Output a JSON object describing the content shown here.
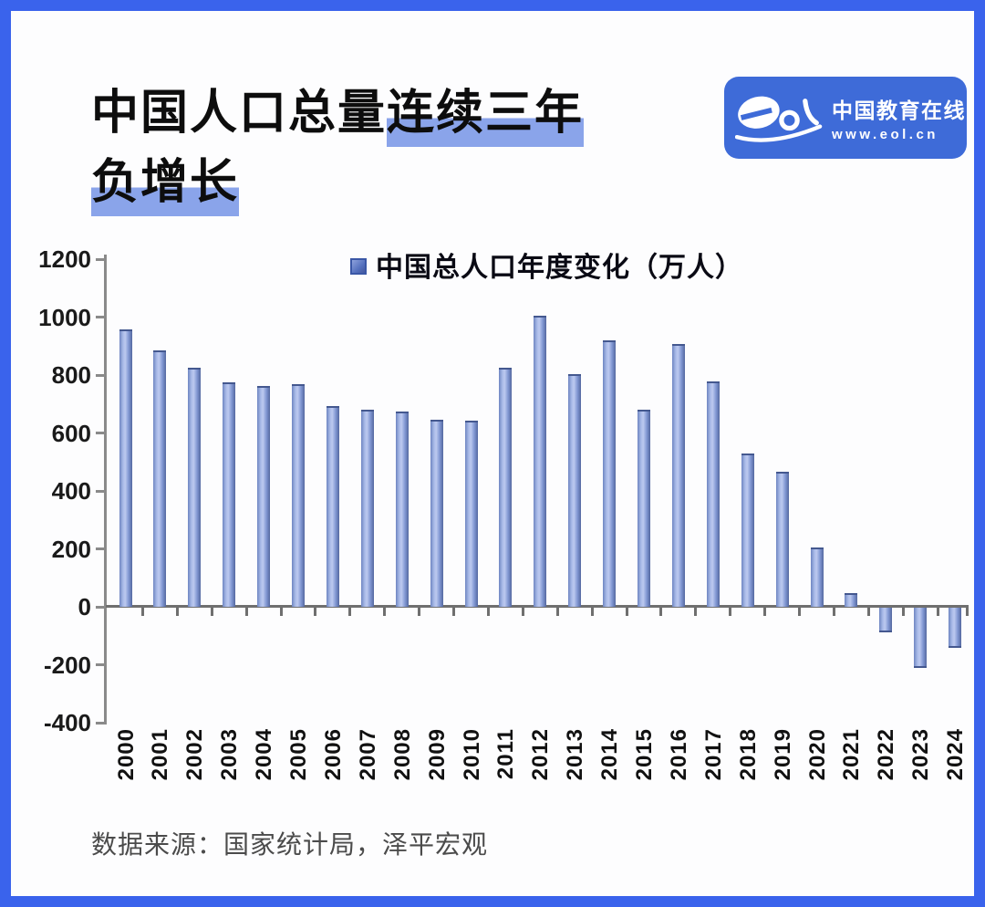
{
  "frame": {
    "border_color": "#3A63EC"
  },
  "header": {
    "title_line1_plain": "中国人口总量",
    "title_line1_highlight": "连续三年",
    "title_line2_highlight": "负增长",
    "highlight_color": "#8AA4EA"
  },
  "logo": {
    "background": "#3E6BD8",
    "wordmark": "eol",
    "name": "中国教育在线",
    "url": "www.eol.cn"
  },
  "chart_data": {
    "type": "bar",
    "title": "",
    "legend": "中国总人口年度变化（万人）",
    "legend_position": "top-center",
    "grid": false,
    "categories": [
      "2000",
      "2001",
      "2002",
      "2003",
      "2004",
      "2005",
      "2006",
      "2007",
      "2008",
      "2009",
      "2010",
      "2011",
      "2012",
      "2013",
      "2014",
      "2015",
      "2016",
      "2017",
      "2018",
      "2019",
      "2020",
      "2021",
      "2022",
      "2023",
      "2024"
    ],
    "values": [
      957,
      884,
      826,
      774,
      761,
      768,
      692,
      681,
      673,
      646,
      641,
      825,
      1006,
      804,
      920,
      680,
      906,
      779,
      530,
      467,
      204,
      48,
      -85,
      -208,
      -139
    ],
    "xlabel": "",
    "ylabel": "",
    "ylim": [
      -400,
      1200
    ],
    "ytick_step": 200,
    "bar_color": "#7B93D0"
  },
  "footer": {
    "source": "数据来源：国家统计局，泽平宏观"
  }
}
